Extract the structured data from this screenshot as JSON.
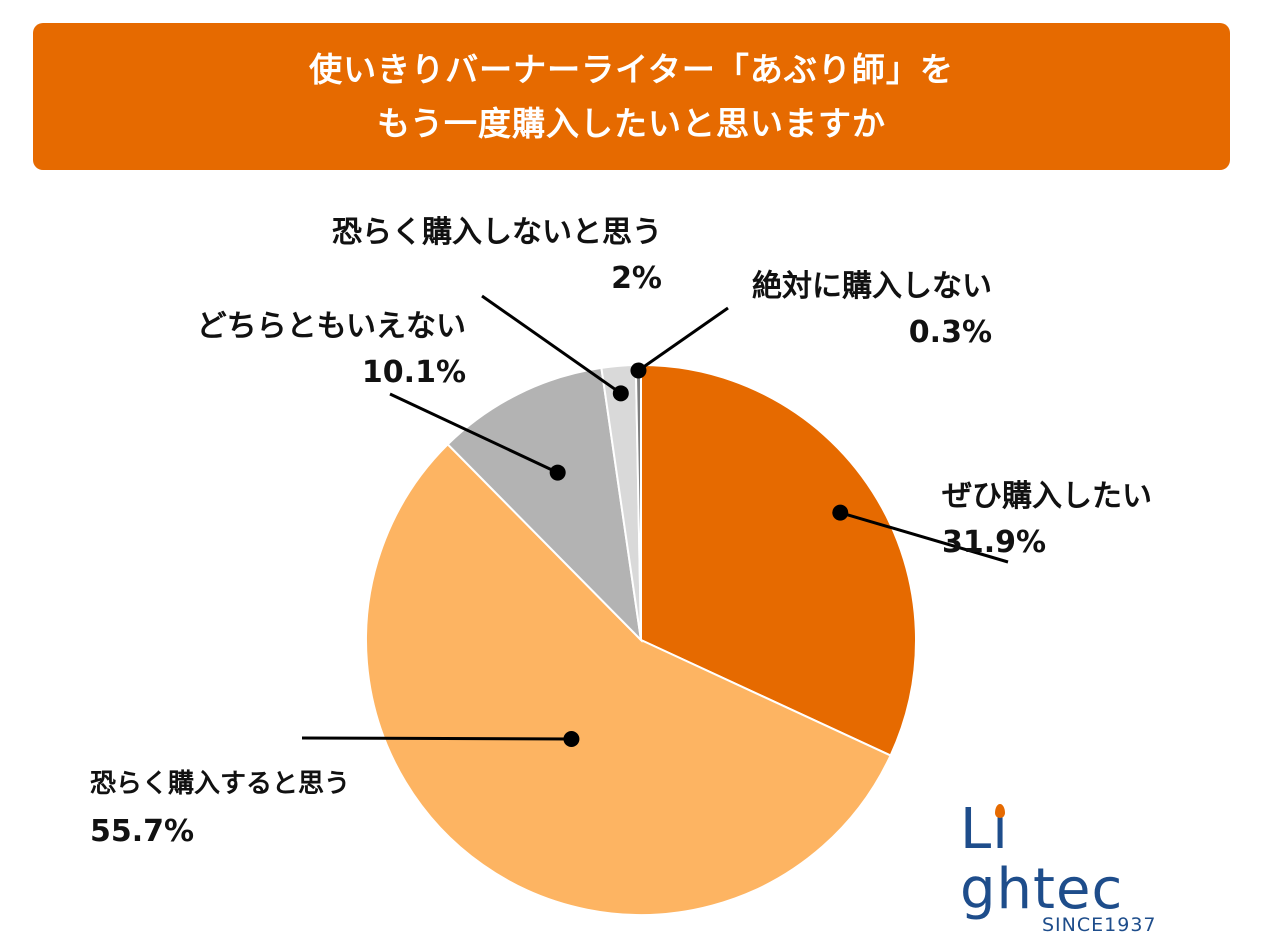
{
  "header": {
    "title_line1": "使いきりバーナーライター「あぶり師」を",
    "title_line2": "もう一度購入したいと思いますか"
  },
  "chart_data": {
    "type": "pie",
    "title": "使いきりバーナーライター「あぶり師」をもう一度購入したいと思いますか",
    "start": "12 o'clock, clockwise",
    "slices": [
      {
        "label": "ぜひ購入したい",
        "value": 31.9,
        "display": "31.9%",
        "color": "#e66a00"
      },
      {
        "label": "恐らく購入すると思う",
        "value": 55.7,
        "display": "55.7%",
        "color": "#fdb462"
      },
      {
        "label": "どちらともいえない",
        "value": 10.1,
        "display": "10.1%",
        "color": "#b3b3b3"
      },
      {
        "label": "恐らく購入しないと思う",
        "value": 2,
        "display": "2%",
        "color": "#d9d9d9"
      },
      {
        "label": "絶対に購入しない",
        "value": 0.3,
        "display": "0.3%",
        "color": "#7f7f7f"
      }
    ]
  },
  "logo": {
    "word_before_i": "L",
    "word_after_i": "ghtec",
    "since": "SINCE1937",
    "primary_color": "#1e4d8b",
    "flame_color": "#e66a00"
  }
}
